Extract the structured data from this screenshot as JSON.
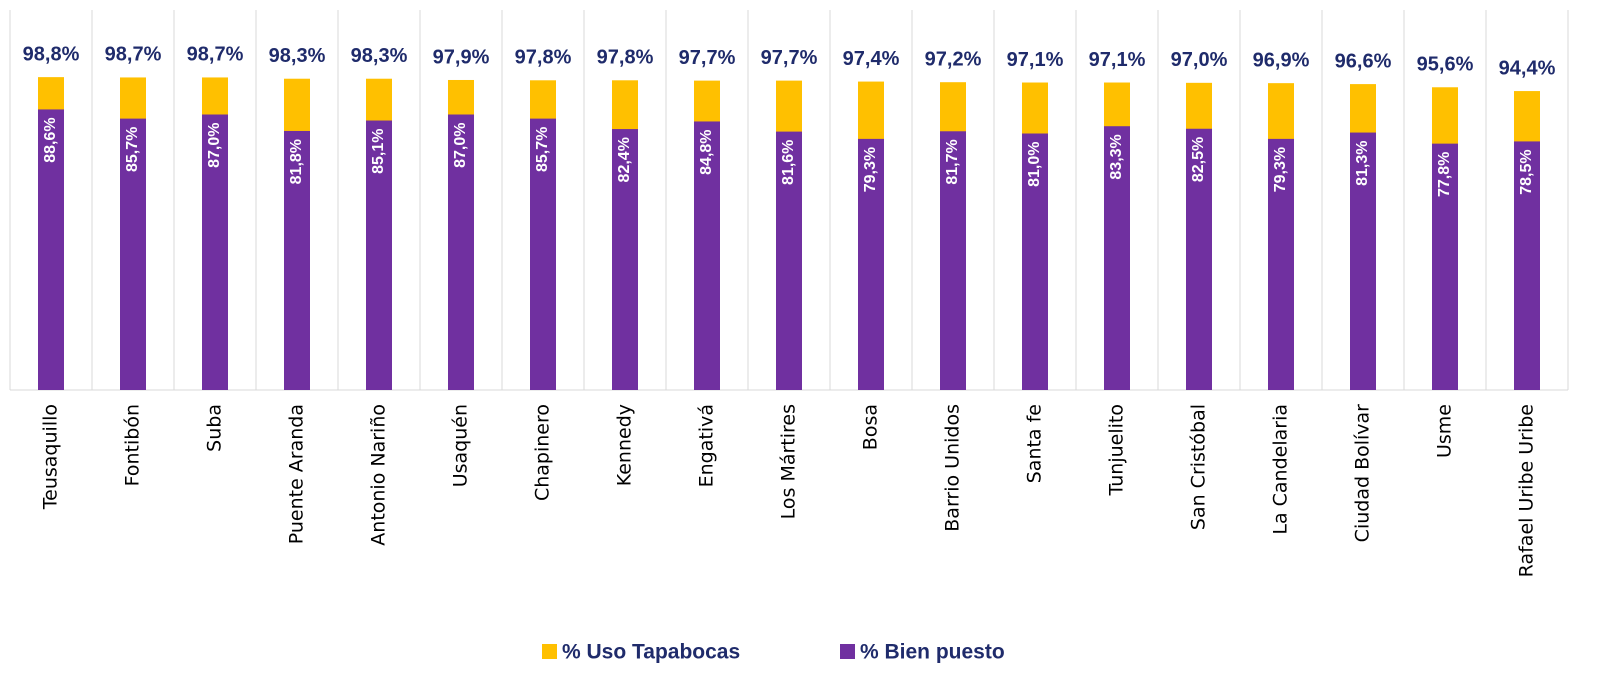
{
  "chart_data": {
    "type": "bar",
    "categories": [
      "Teusaquillo",
      "Fontibón",
      "Suba",
      "Puente Aranda",
      "Antonio Nariño",
      "Usaquén",
      "Chapinero",
      "Kennedy",
      "Engativá",
      "Los Mártires",
      "Bosa",
      "Barrio Unidos",
      "Santa fe",
      "Tunjuelito",
      "San Cristóbal",
      "La Candelaria",
      "Ciudad Bolívar",
      "Usme",
      "Rafael Uribe Uribe"
    ],
    "series": [
      {
        "name": "% Uso Tapabocas",
        "color": "#ffc000",
        "values": [
          98.8,
          98.7,
          98.7,
          98.3,
          98.3,
          97.9,
          97.8,
          97.8,
          97.7,
          97.7,
          97.4,
          97.2,
          97.1,
          97.1,
          97.0,
          96.9,
          96.6,
          95.6,
          94.4
        ],
        "value_labels": [
          "98,8%",
          "98,7%",
          "98,7%",
          "98,3%",
          "98,3%",
          "97,9%",
          "97,8%",
          "97,8%",
          "97,7%",
          "97,7%",
          "97,4%",
          "97,2%",
          "97,1%",
          "97,1%",
          "97,0%",
          "96,9%",
          "96,6%",
          "95,6%",
          "94,4%"
        ]
      },
      {
        "name": "% Bien puesto",
        "color": "#7030a0",
        "values": [
          88.6,
          85.7,
          87.0,
          81.8,
          85.1,
          87.0,
          85.7,
          82.4,
          84.8,
          81.6,
          79.3,
          81.7,
          81.0,
          83.3,
          82.5,
          79.3,
          81.3,
          77.8,
          78.5
        ],
        "value_labels": [
          "88,6%",
          "85,7%",
          "87,0%",
          "81,8%",
          "85,1%",
          "87,0%",
          "85,7%",
          "82,4%",
          "84,8%",
          "81,6%",
          "79,3%",
          "81,7%",
          "81,0%",
          "83,3%",
          "82,5%",
          "79,3%",
          "81,3%",
          "77,8%",
          "78,5%"
        ]
      }
    ],
    "ylim": [
      0,
      120
    ]
  }
}
